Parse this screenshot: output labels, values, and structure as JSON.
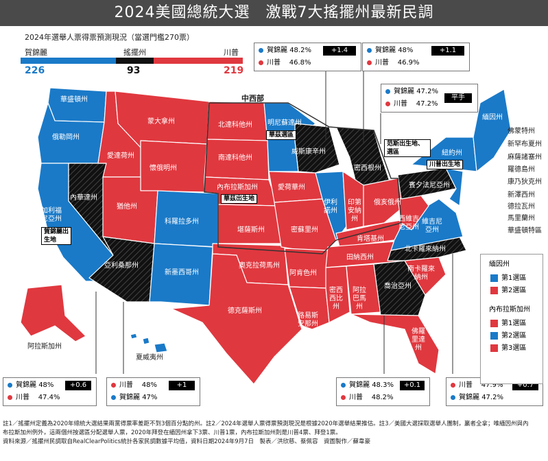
{
  "title": "2024美國總統大選　激戰7大搖擺州最新民調",
  "electoral": {
    "heading": "2024年選舉人票得票預測現況（當選門檻270票）",
    "harris_label": "賀錦麗",
    "swing_label": "搖擺州",
    "trump_label": "川普",
    "harris_votes": "226",
    "swing_votes": "93",
    "trump_votes": "219"
  },
  "colors": {
    "blue": "#1a7ac8",
    "red": "#e0383f",
    "black": "#111111",
    "gray_header": "#4a4a4a"
  },
  "polls": {
    "pennsylvania": {
      "l1_name": "賀錦麗",
      "l1_pct": "48.2%",
      "l2_name": "川普",
      "l2_pct": "46.8%",
      "margin": "+1.4"
    },
    "michigan": {
      "l1_name": "賀錦麗",
      "l1_pct": "48%",
      "l2_name": "川普",
      "l2_pct": "46.9%",
      "margin": "+1.1"
    },
    "wisconsin": {
      "l1_name": "賀錦麗",
      "l1_pct": "47.2%",
      "l2_name": "川普",
      "l2_pct": "47.2%",
      "margin": "平手"
    },
    "nevada": {
      "l1_name": "賀錦麗",
      "l1_pct": "48%",
      "l2_name": "川普",
      "l2_pct": "47.4%",
      "margin": "+0.6"
    },
    "arizona": {
      "l1_name": "川普",
      "l1_pct": "48%",
      "l2_name": "賀錦麗",
      "l2_pct": "47%",
      "margin": "+1"
    },
    "georgia": {
      "l1_name": "賀錦麗",
      "l1_pct": "48.3%",
      "l2_name": "川普",
      "l2_pct": "48.2%",
      "margin": "+0.1"
    },
    "north_carolina": {
      "l1_name": "川普",
      "l1_pct": "47.9%",
      "l2_name": "賀錦麗",
      "l2_pct": "47.2%",
      "margin": "+0.7"
    }
  },
  "region_label": "中西部",
  "states": {
    "washington": "華盛頓州",
    "oregon": "俄勒岡州",
    "california": "加利福尼亞州",
    "nevada": "內華達州",
    "idaho": "愛達荷州",
    "montana": "蒙大拿州",
    "wyoming": "懷俄明州",
    "utah": "猶他州",
    "arizona": "亞利桑那州",
    "colorado": "科羅拉多州",
    "new_mexico": "新墨西哥州",
    "north_dakota": "北達科他州",
    "south_dakota": "南達科他州",
    "nebraska": "內布拉斯加州",
    "kansas": "堪薩斯州",
    "oklahoma": "奧克拉荷馬州",
    "texas": "德克薩斯州",
    "minnesota": "明尼蘇達州",
    "iowa": "愛荷華州",
    "missouri": "密蘇里州",
    "arkansas": "阿肯色州",
    "louisiana": "路易斯安那州",
    "wisconsin": "威斯康辛州",
    "illinois": "伊利諾州",
    "michigan": "密西根州",
    "indiana": "印第安納州",
    "ohio": "俄亥俄州",
    "kentucky": "肯塔基州",
    "tennessee": "田納西州",
    "mississippi": "密西西比州",
    "alabama": "阿拉巴馬州",
    "georgia": "喬治亞州",
    "florida": "佛羅里達州",
    "south_carolina": "南卡羅來納州",
    "north_carolina": "北卡羅來納州",
    "virginia": "維吉尼亞州",
    "west_virginia": "西維吉尼亞州",
    "pennsylvania": "賓夕法尼亞州",
    "new_york": "紐約州",
    "maine": "緬因州",
    "alaska": "阿拉斯加州",
    "hawaii": "夏威夷州"
  },
  "northeast_labels": [
    "佛蒙特州",
    "新罕布夏州",
    "麻薩諸塞州",
    "羅德島州",
    "康乃狄克州",
    "新澤西州",
    "德拉瓦州",
    "馬里蘭州",
    "華盛頓特區"
  ],
  "birthplace_tags": {
    "minnesota": "華茲選區",
    "nebraska": "華茲出生地",
    "california": "賀錦麗出生地",
    "ohio": "范斯出生地、選區",
    "new_york": "川普出生地"
  },
  "legend": {
    "maine_title": "緬因州",
    "maine_items": [
      "第1選區",
      "第2選區"
    ],
    "nebraska_title": "內布拉斯加州",
    "nebraska_items": [
      "第1選區",
      "第2選區",
      "第3選區"
    ]
  },
  "footnote": {
    "line1": "註1／搖擺州定義為2020年總統大選結果兩黨得票率差距不到3個百分點的州。註2／2024年選舉人票得票預測現況是根據2020年選舉結果推估。註3／美國大選採取選舉人團制，贏者全拿；唯緬因州與內",
    "line2": "布拉斯加州例外，這兩個州按選區分配選舉人票，2020年拜登在緬因州拿下3票、川普1票，內布拉斯加州則是川普4票、拜登1票。",
    "line3": "資料來源／搖擺州民調取自RealClearPolitics統計各家民調數據平均值，資料日期2024年9月7日　製表／洪欣慈、蔡佩容　資圖製作／蘇韋豪"
  }
}
